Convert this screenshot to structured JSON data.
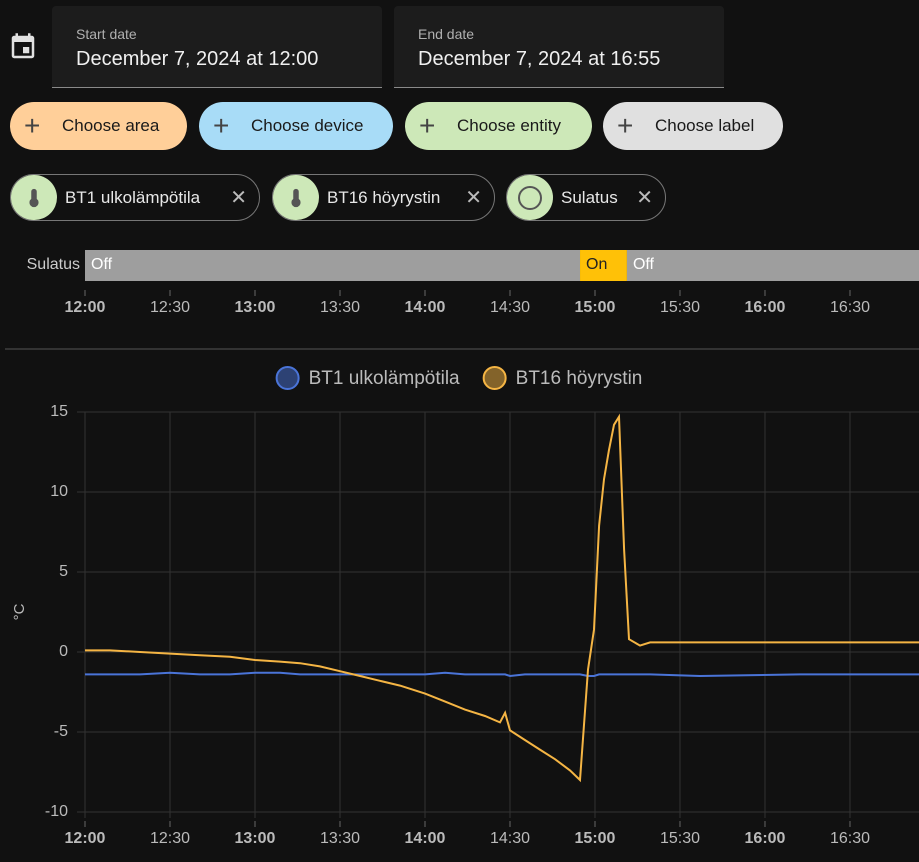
{
  "date_range": {
    "start_label": "Start date",
    "start_value": "December 7, 2024 at 12:00",
    "end_label": "End date",
    "end_value": "December 7, 2024 at 16:55"
  },
  "target_picker": {
    "buttons": [
      "Choose area",
      "Choose device",
      "Choose entity",
      "Choose label"
    ]
  },
  "selected_targets": [
    "BT1 ulkolämpötila",
    "BT16 höyrystin",
    "Sulatus"
  ],
  "chart_data": [
    {
      "type": "timeline",
      "label": "Sulatus",
      "segments": [
        {
          "state": "Off",
          "start": 12.0,
          "end": 14.912,
          "color": "#9e9e9e"
        },
        {
          "state": "On",
          "start": 14.912,
          "end": 15.188,
          "color": "#ffc107"
        },
        {
          "state": "Off",
          "start": 15.188,
          "end": 16.906,
          "color": "#9e9e9e"
        }
      ],
      "xlim": [
        12.0,
        16.906
      ],
      "xticks": [
        {
          "value": 12,
          "label": "12:00"
        },
        {
          "value": 12.5,
          "label": "12:30"
        },
        {
          "value": 13,
          "label": "13:00"
        },
        {
          "value": 13.5,
          "label": "13:30"
        },
        {
          "value": 14,
          "label": "14:00"
        },
        {
          "value": 14.5,
          "label": "14:30"
        },
        {
          "value": 15,
          "label": "15:00"
        },
        {
          "value": 15.5,
          "label": "15:30"
        },
        {
          "value": 16,
          "label": "16:00"
        },
        {
          "value": 16.5,
          "label": "16:30"
        }
      ]
    },
    {
      "type": "line",
      "ylabel": "°C",
      "x": [
        12.0,
        12.147,
        12.324,
        12.5,
        12.676,
        12.853,
        13.0,
        13.147,
        13.265,
        13.382,
        13.5,
        13.618,
        13.735,
        13.853,
        14.0,
        14.118,
        14.235,
        14.353,
        14.441,
        14.471,
        14.5,
        14.588,
        14.676,
        14.765,
        14.853,
        14.912,
        14.959,
        14.994,
        15.024,
        15.053,
        15.082,
        15.112,
        15.141,
        15.171,
        15.2,
        15.265,
        15.324,
        15.618,
        16.206,
        16.906
      ],
      "series": [
        {
          "name": "BT1 ulkolämpötila",
          "color": "#4a74d8",
          "values": [
            -1.4,
            -1.4,
            -1.4,
            -1.3,
            -1.4,
            -1.4,
            -1.3,
            -1.3,
            -1.4,
            -1.4,
            -1.4,
            -1.4,
            -1.4,
            -1.4,
            -1.4,
            -1.3,
            -1.4,
            -1.4,
            -1.4,
            -1.4,
            -1.5,
            -1.4,
            -1.4,
            -1.4,
            -1.4,
            -1.4,
            -1.5,
            -1.5,
            -1.4,
            -1.4,
            -1.4,
            -1.4,
            -1.4,
            -1.4,
            -1.4,
            -1.4,
            -1.4,
            -1.5,
            -1.4,
            -1.4
          ]
        },
        {
          "name": "BT16 höyrystin",
          "color": "#f5b544",
          "values": [
            0.1,
            0.1,
            0.0,
            -0.1,
            -0.2,
            -0.3,
            -0.5,
            -0.6,
            -0.7,
            -0.9,
            -1.2,
            -1.5,
            -1.8,
            -2.1,
            -2.6,
            -3.1,
            -3.6,
            -4.0,
            -4.4,
            -3.8,
            -4.9,
            -5.5,
            -6.1,
            -6.7,
            -7.4,
            -8.0,
            -1.1,
            1.4,
            7.9,
            10.8,
            12.6,
            14.2,
            14.7,
            6.4,
            0.8,
            0.4,
            0.6,
            0.6,
            0.6,
            0.6
          ]
        }
      ],
      "xlim": [
        12.0,
        16.906
      ],
      "ylim": [
        -10,
        15
      ],
      "yticks": [
        -10,
        -5,
        0,
        5,
        10,
        15
      ],
      "grid": true,
      "xticks": [
        {
          "value": 12,
          "label": "12:00"
        },
        {
          "value": 12.5,
          "label": "12:30"
        },
        {
          "value": 13,
          "label": "13:00"
        },
        {
          "value": 13.5,
          "label": "13:30"
        },
        {
          "value": 14,
          "label": "14:00"
        },
        {
          "value": 14.5,
          "label": "14:30"
        },
        {
          "value": 15,
          "label": "15:00"
        },
        {
          "value": 15.5,
          "label": "15:30"
        },
        {
          "value": 16,
          "label": "16:00"
        },
        {
          "value": 16.5,
          "label": "16:30"
        }
      ]
    }
  ]
}
